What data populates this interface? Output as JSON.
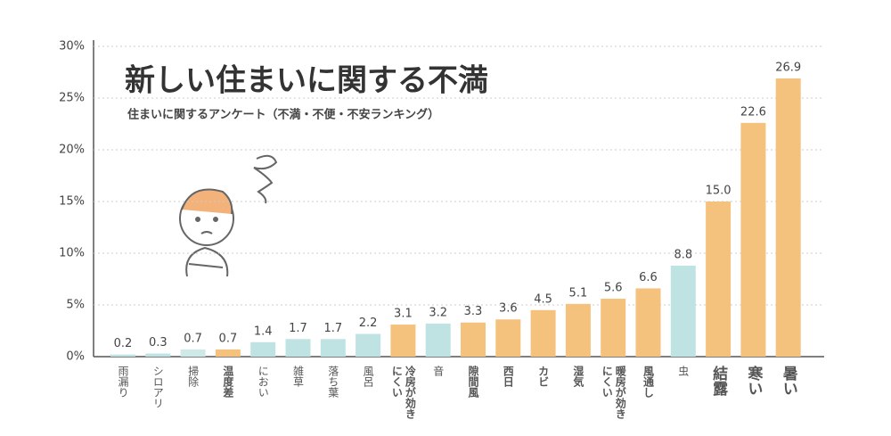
{
  "chart_data": {
    "type": "bar",
    "title": "新しい住まいに関する不満",
    "subtitle": "住まいに関するアンケート（不満・不便・不安ランキング）",
    "categories": [
      "雨漏り",
      "シロアリ",
      "掃除",
      "温度差",
      "におい",
      "雑草",
      "落ち葉",
      "風呂",
      "冷房が効きにくい",
      "音",
      "隙間風",
      "西日",
      "カビ",
      "湿気",
      "暖房が効きにくい",
      "風通し",
      "虫",
      "結露",
      "寒い",
      "暑い"
    ],
    "values": [
      0.2,
      0.3,
      0.7,
      0.7,
      1.4,
      1.7,
      1.7,
      2.2,
      3.1,
      3.2,
      3.3,
      3.6,
      4.5,
      5.1,
      5.6,
      6.6,
      8.8,
      15.0,
      22.6,
      26.9
    ],
    "value_labels": [
      "0.2",
      "0.3",
      "0.7",
      "0.7",
      "1.4",
      "1.7",
      "1.7",
      "2.2",
      "3.1",
      "3.2",
      "3.3",
      "3.6",
      "4.5",
      "5.1",
      "5.6",
      "6.6",
      "8.8",
      "15.0",
      "22.6",
      "26.9"
    ],
    "colors": [
      "#bfe3e3",
      "#bfe3e3",
      "#cfe8e8",
      "#f5c27d",
      "#bfe3e3",
      "#bfe3e3",
      "#bfe3e3",
      "#bfe3e3",
      "#f5c27d",
      "#bfe3e3",
      "#f5c27d",
      "#f5c27d",
      "#f5c27d",
      "#f5c27d",
      "#f5c27d",
      "#f5c27d",
      "#bfe3e3",
      "#f5c27d",
      "#f5c27d",
      "#f5c27d"
    ],
    "ylim": [
      0,
      30
    ],
    "yticks": [
      {
        "value": 0,
        "label": "0%"
      },
      {
        "value": 5,
        "label": "5%"
      },
      {
        "value": 10,
        "label": "10%"
      },
      {
        "value": 15,
        "label": "15%"
      },
      {
        "value": 20,
        "label": "20%"
      },
      {
        "value": 25,
        "label": "25%"
      },
      {
        "value": 30,
        "label": "30%"
      }
    ],
    "grid": true
  }
}
